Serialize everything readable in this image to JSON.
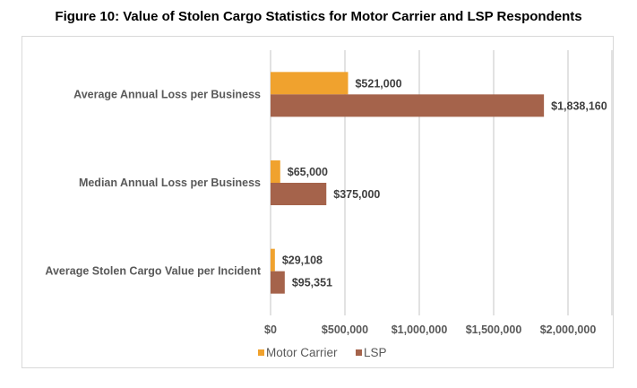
{
  "chart_data": {
    "type": "bar",
    "orientation": "horizontal",
    "title": "Figure 10: Value of Stolen Cargo Statistics for Motor Carrier and LSP Respondents",
    "categories": [
      "Average Annual Loss per Business",
      "Median Annual Loss per Business",
      "Average Stolen Cargo Value per Incident"
    ],
    "series": [
      {
        "name": "Motor Carrier",
        "color": "#F0A22E",
        "values": [
          521000,
          65000,
          29108
        ],
        "labels": [
          "$521,000",
          "$65,000",
          "$29,108"
        ]
      },
      {
        "name": "LSP",
        "color": "#A5634B",
        "values": [
          1838160,
          375000,
          95351
        ],
        "labels": [
          "$1,838,160",
          "$375,000",
          "$95,351"
        ]
      }
    ],
    "xlim": [
      0,
      2000000
    ],
    "xticks": [
      0,
      500000,
      1000000,
      1500000,
      2000000
    ],
    "xtick_labels": [
      "$0",
      "$500,000",
      "$1,000,000",
      "$1,500,000",
      "$2,000,000"
    ],
    "xlabel": "",
    "ylabel": "",
    "grid": "vertical",
    "legend": "bottom-center"
  }
}
